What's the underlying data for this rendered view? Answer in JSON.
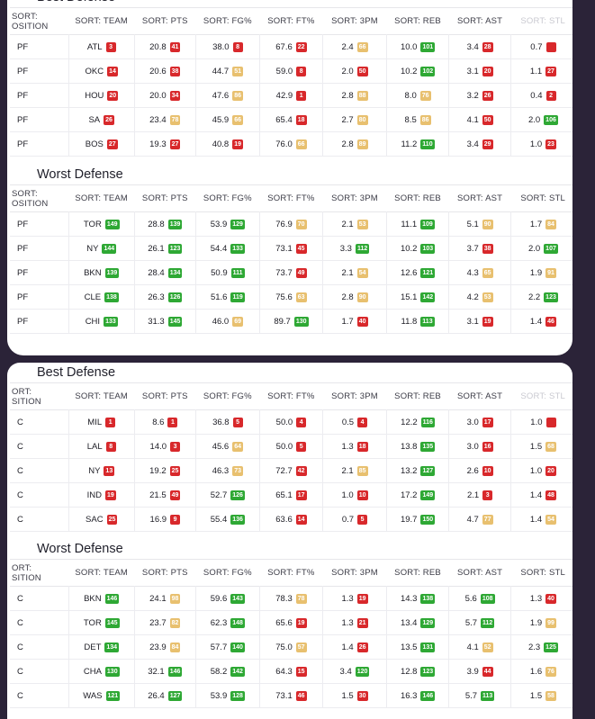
{
  "colors": {
    "red": "#d8282b",
    "yellow": "#e8c06f",
    "green": "#2ea834"
  },
  "headers": {
    "position_top": "SORT:",
    "position_bottom_pf": "OSITION",
    "position_top_c": "ORT:",
    "position_bottom_c": "SITION",
    "team": "SORT: TEAM",
    "pts": "SORT: PTS",
    "fg": "SORT: FG%",
    "ft": "SORT: FT%",
    "tpm": "SORT: 3PM",
    "reb": "SORT: REB",
    "ast": "SORT: AST",
    "stl": "SORT: STL"
  },
  "pf_best": {
    "title": "Best Defense",
    "rows": [
      {
        "pos": "PF",
        "team": "ATL",
        "team_rank": "3",
        "team_c": "r",
        "pts": "20.8",
        "pts_rank": "41",
        "pts_c": "r",
        "fg": "38.0",
        "fg_rank": "8",
        "fg_c": "r",
        "ft": "67.6",
        "ft_rank": "22",
        "ft_c": "r",
        "tpm": "2.4",
        "tpm_rank": "66",
        "tpm_c": "y",
        "reb": "10.0",
        "reb_rank": "101",
        "reb_c": "g",
        "ast": "3.4",
        "ast_rank": "28",
        "ast_c": "r",
        "stl": "0.7",
        "stl_rank": "",
        "stl_c": "r"
      },
      {
        "pos": "PF",
        "team": "OKC",
        "team_rank": "14",
        "team_c": "r",
        "pts": "20.6",
        "pts_rank": "38",
        "pts_c": "r",
        "fg": "44.7",
        "fg_rank": "51",
        "fg_c": "y",
        "ft": "59.0",
        "ft_rank": "8",
        "ft_c": "r",
        "tpm": "2.0",
        "tpm_rank": "50",
        "tpm_c": "r",
        "reb": "10.2",
        "reb_rank": "102",
        "reb_c": "g",
        "ast": "3.1",
        "ast_rank": "20",
        "ast_c": "r",
        "stl": "1.1",
        "stl_rank": "27",
        "stl_c": "r"
      },
      {
        "pos": "PF",
        "team": "HOU",
        "team_rank": "20",
        "team_c": "r",
        "pts": "20.0",
        "pts_rank": "34",
        "pts_c": "r",
        "fg": "47.6",
        "fg_rank": "86",
        "fg_c": "y",
        "ft": "42.9",
        "ft_rank": "1",
        "ft_c": "r",
        "tpm": "2.8",
        "tpm_rank": "88",
        "tpm_c": "y",
        "reb": "8.0",
        "reb_rank": "76",
        "reb_c": "y",
        "ast": "3.2",
        "ast_rank": "26",
        "ast_c": "r",
        "stl": "0.4",
        "stl_rank": "2",
        "stl_c": "r"
      },
      {
        "pos": "PF",
        "team": "SA",
        "team_rank": "26",
        "team_c": "r",
        "pts": "23.4",
        "pts_rank": "78",
        "pts_c": "y",
        "fg": "45.9",
        "fg_rank": "66",
        "fg_c": "y",
        "ft": "65.4",
        "ft_rank": "18",
        "ft_c": "r",
        "tpm": "2.7",
        "tpm_rank": "80",
        "tpm_c": "y",
        "reb": "8.5",
        "reb_rank": "86",
        "reb_c": "y",
        "ast": "4.1",
        "ast_rank": "50",
        "ast_c": "r",
        "stl": "2.0",
        "stl_rank": "106",
        "stl_c": "g"
      },
      {
        "pos": "PF",
        "team": "BOS",
        "team_rank": "27",
        "team_c": "r",
        "pts": "19.3",
        "pts_rank": "27",
        "pts_c": "r",
        "fg": "40.8",
        "fg_rank": "19",
        "fg_c": "r",
        "ft": "76.0",
        "ft_rank": "66",
        "ft_c": "y",
        "tpm": "2.8",
        "tpm_rank": "89",
        "tpm_c": "y",
        "reb": "11.2",
        "reb_rank": "110",
        "reb_c": "g",
        "ast": "3.4",
        "ast_rank": "29",
        "ast_c": "r",
        "stl": "1.0",
        "stl_rank": "23",
        "stl_c": "r"
      }
    ]
  },
  "pf_worst": {
    "title": "Worst Defense",
    "rows": [
      {
        "pos": "PF",
        "team": "TOR",
        "team_rank": "149",
        "team_c": "g",
        "pts": "28.8",
        "pts_rank": "139",
        "pts_c": "g",
        "fg": "53.9",
        "fg_rank": "129",
        "fg_c": "g",
        "ft": "76.9",
        "ft_rank": "70",
        "ft_c": "y",
        "tpm": "2.1",
        "tpm_rank": "53",
        "tpm_c": "y",
        "reb": "11.1",
        "reb_rank": "109",
        "reb_c": "g",
        "ast": "5.1",
        "ast_rank": "90",
        "ast_c": "y",
        "stl": "1.7",
        "stl_rank": "84",
        "stl_c": "y"
      },
      {
        "pos": "PF",
        "team": "NY",
        "team_rank": "144",
        "team_c": "g",
        "pts": "26.1",
        "pts_rank": "123",
        "pts_c": "g",
        "fg": "54.4",
        "fg_rank": "133",
        "fg_c": "g",
        "ft": "73.1",
        "ft_rank": "45",
        "ft_c": "r",
        "tpm": "3.3",
        "tpm_rank": "112",
        "tpm_c": "g",
        "reb": "10.2",
        "reb_rank": "103",
        "reb_c": "g",
        "ast": "3.7",
        "ast_rank": "38",
        "ast_c": "r",
        "stl": "2.0",
        "stl_rank": "107",
        "stl_c": "g"
      },
      {
        "pos": "PF",
        "team": "BKN",
        "team_rank": "139",
        "team_c": "g",
        "pts": "28.4",
        "pts_rank": "134",
        "pts_c": "g",
        "fg": "50.9",
        "fg_rank": "111",
        "fg_c": "g",
        "ft": "73.7",
        "ft_rank": "49",
        "ft_c": "r",
        "tpm": "2.1",
        "tpm_rank": "54",
        "tpm_c": "y",
        "reb": "12.6",
        "reb_rank": "121",
        "reb_c": "g",
        "ast": "4.3",
        "ast_rank": "65",
        "ast_c": "y",
        "stl": "1.9",
        "stl_rank": "91",
        "stl_c": "y"
      },
      {
        "pos": "PF",
        "team": "CLE",
        "team_rank": "138",
        "team_c": "g",
        "pts": "26.3",
        "pts_rank": "126",
        "pts_c": "g",
        "fg": "51.6",
        "fg_rank": "119",
        "fg_c": "g",
        "ft": "75.6",
        "ft_rank": "63",
        "ft_c": "y",
        "tpm": "2.8",
        "tpm_rank": "90",
        "tpm_c": "y",
        "reb": "15.1",
        "reb_rank": "142",
        "reb_c": "g",
        "ast": "4.2",
        "ast_rank": "53",
        "ast_c": "y",
        "stl": "2.2",
        "stl_rank": "123",
        "stl_c": "g"
      },
      {
        "pos": "PF",
        "team": "CHI",
        "team_rank": "133",
        "team_c": "g",
        "pts": "31.3",
        "pts_rank": "145",
        "pts_c": "g",
        "fg": "46.0",
        "fg_rank": "69",
        "fg_c": "y",
        "ft": "89.7",
        "ft_rank": "130",
        "ft_c": "g",
        "tpm": "1.7",
        "tpm_rank": "40",
        "tpm_c": "r",
        "reb": "11.8",
        "reb_rank": "113",
        "reb_c": "g",
        "ast": "3.1",
        "ast_rank": "19",
        "ast_c": "r",
        "stl": "1.4",
        "stl_rank": "46",
        "stl_c": "r"
      }
    ]
  },
  "c_best": {
    "title": "Best Defense",
    "rows": [
      {
        "pos": "C",
        "team": "MIL",
        "team_rank": "1",
        "team_c": "r",
        "pts": "8.6",
        "pts_rank": "1",
        "pts_c": "r",
        "fg": "36.8",
        "fg_rank": "5",
        "fg_c": "r",
        "ft": "50.0",
        "ft_rank": "4",
        "ft_c": "r",
        "tpm": "0.5",
        "tpm_rank": "4",
        "tpm_c": "r",
        "reb": "12.2",
        "reb_rank": "116",
        "reb_c": "g",
        "ast": "3.0",
        "ast_rank": "17",
        "ast_c": "r",
        "stl": "1.0",
        "stl_rank": "",
        "stl_c": "r"
      },
      {
        "pos": "C",
        "team": "LAL",
        "team_rank": "8",
        "team_c": "r",
        "pts": "14.0",
        "pts_rank": "3",
        "pts_c": "r",
        "fg": "45.6",
        "fg_rank": "64",
        "fg_c": "y",
        "ft": "50.0",
        "ft_rank": "5",
        "ft_c": "r",
        "tpm": "1.3",
        "tpm_rank": "18",
        "tpm_c": "r",
        "reb": "13.8",
        "reb_rank": "135",
        "reb_c": "g",
        "ast": "3.0",
        "ast_rank": "16",
        "ast_c": "r",
        "stl": "1.5",
        "stl_rank": "68",
        "stl_c": "y"
      },
      {
        "pos": "C",
        "team": "NY",
        "team_rank": "13",
        "team_c": "r",
        "pts": "19.2",
        "pts_rank": "25",
        "pts_c": "r",
        "fg": "46.3",
        "fg_rank": "73",
        "fg_c": "y",
        "ft": "72.7",
        "ft_rank": "42",
        "ft_c": "r",
        "tpm": "2.1",
        "tpm_rank": "85",
        "tpm_c": "y",
        "reb": "13.2",
        "reb_rank": "127",
        "reb_c": "g",
        "ast": "2.6",
        "ast_rank": "10",
        "ast_c": "r",
        "stl": "1.0",
        "stl_rank": "20",
        "stl_c": "r"
      },
      {
        "pos": "C",
        "team": "IND",
        "team_rank": "19",
        "team_c": "r",
        "pts": "21.5",
        "pts_rank": "49",
        "pts_c": "r",
        "fg": "52.7",
        "fg_rank": "126",
        "fg_c": "g",
        "ft": "65.1",
        "ft_rank": "17",
        "ft_c": "r",
        "tpm": "1.0",
        "tpm_rank": "10",
        "tpm_c": "r",
        "reb": "17.2",
        "reb_rank": "149",
        "reb_c": "g",
        "ast": "2.1",
        "ast_rank": "3",
        "ast_c": "r",
        "stl": "1.4",
        "stl_rank": "48",
        "stl_c": "r"
      },
      {
        "pos": "C",
        "team": "SAC",
        "team_rank": "25",
        "team_c": "r",
        "pts": "16.9",
        "pts_rank": "9",
        "pts_c": "r",
        "fg": "55.4",
        "fg_rank": "136",
        "fg_c": "g",
        "ft": "63.6",
        "ft_rank": "14",
        "ft_c": "r",
        "tpm": "0.7",
        "tpm_rank": "5",
        "tpm_c": "r",
        "reb": "19.7",
        "reb_rank": "150",
        "reb_c": "g",
        "ast": "4.7",
        "ast_rank": "77",
        "ast_c": "y",
        "stl": "1.4",
        "stl_rank": "54",
        "stl_c": "y"
      }
    ]
  },
  "c_worst": {
    "title": "Worst Defense",
    "rows": [
      {
        "pos": "C",
        "team": "BKN",
        "team_rank": "146",
        "team_c": "g",
        "pts": "24.1",
        "pts_rank": "98",
        "pts_c": "y",
        "fg": "59.6",
        "fg_rank": "143",
        "fg_c": "g",
        "ft": "78.3",
        "ft_rank": "78",
        "ft_c": "y",
        "tpm": "1.3",
        "tpm_rank": "19",
        "tpm_c": "r",
        "reb": "14.3",
        "reb_rank": "138",
        "reb_c": "g",
        "ast": "5.6",
        "ast_rank": "108",
        "ast_c": "g",
        "stl": "1.3",
        "stl_rank": "40",
        "stl_c": "r"
      },
      {
        "pos": "C",
        "team": "TOR",
        "team_rank": "145",
        "team_c": "g",
        "pts": "23.7",
        "pts_rank": "82",
        "pts_c": "y",
        "fg": "62.3",
        "fg_rank": "148",
        "fg_c": "g",
        "ft": "65.6",
        "ft_rank": "19",
        "ft_c": "r",
        "tpm": "1.3",
        "tpm_rank": "21",
        "tpm_c": "r",
        "reb": "13.4",
        "reb_rank": "129",
        "reb_c": "g",
        "ast": "5.7",
        "ast_rank": "112",
        "ast_c": "g",
        "stl": "1.9",
        "stl_rank": "99",
        "stl_c": "y"
      },
      {
        "pos": "C",
        "team": "DET",
        "team_rank": "134",
        "team_c": "g",
        "pts": "23.9",
        "pts_rank": "84",
        "pts_c": "y",
        "fg": "57.7",
        "fg_rank": "140",
        "fg_c": "g",
        "ft": "75.0",
        "ft_rank": "57",
        "ft_c": "y",
        "tpm": "1.4",
        "tpm_rank": "26",
        "tpm_c": "r",
        "reb": "13.5",
        "reb_rank": "131",
        "reb_c": "g",
        "ast": "4.1",
        "ast_rank": "52",
        "ast_c": "y",
        "stl": "2.3",
        "stl_rank": "125",
        "stl_c": "g"
      },
      {
        "pos": "C",
        "team": "CHA",
        "team_rank": "130",
        "team_c": "g",
        "pts": "32.1",
        "pts_rank": "146",
        "pts_c": "g",
        "fg": "58.2",
        "fg_rank": "142",
        "fg_c": "g",
        "ft": "64.3",
        "ft_rank": "15",
        "ft_c": "r",
        "tpm": "3.4",
        "tpm_rank": "120",
        "tpm_c": "g",
        "reb": "12.8",
        "reb_rank": "123",
        "reb_c": "g",
        "ast": "3.9",
        "ast_rank": "44",
        "ast_c": "r",
        "stl": "1.6",
        "stl_rank": "76",
        "stl_c": "y"
      },
      {
        "pos": "C",
        "team": "WAS",
        "team_rank": "121",
        "team_c": "g",
        "pts": "26.4",
        "pts_rank": "127",
        "pts_c": "g",
        "fg": "53.9",
        "fg_rank": "128",
        "fg_c": "g",
        "ft": "73.1",
        "ft_rank": "46",
        "ft_c": "r",
        "tpm": "1.5",
        "tpm_rank": "30",
        "tpm_c": "r",
        "reb": "16.3",
        "reb_rank": "146",
        "reb_c": "g",
        "ast": "5.7",
        "ast_rank": "113",
        "ast_c": "g",
        "stl": "1.5",
        "stl_rank": "58",
        "stl_c": "y"
      }
    ]
  }
}
